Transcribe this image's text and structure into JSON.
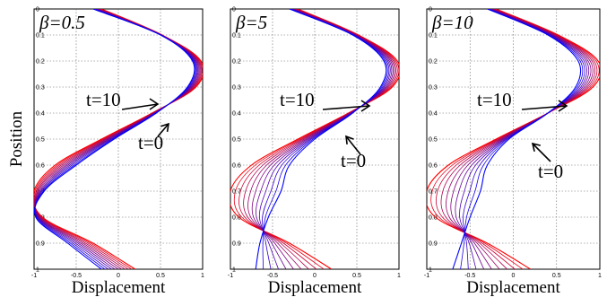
{
  "chart_data": [
    {
      "type": "line",
      "title": "β=0.5",
      "xlabel": "Displacement",
      "ylabel": "Position",
      "xlim": [
        -1,
        1
      ],
      "ylim": [
        0,
        1
      ],
      "y_inverted": true,
      "x_ticks": [
        "-1",
        "-0.5",
        "0",
        "0.5",
        "1"
      ],
      "y_ticks": [
        "0",
        "0.1",
        "0.2",
        "0.3",
        "0.4",
        "0.5",
        "0.6",
        "0.7",
        "0.8",
        "0.9",
        "1"
      ],
      "grid": true,
      "annotations": [
        "t=10",
        "t=0"
      ],
      "series_colors": [
        "#ff0000",
        "#0000ff"
      ],
      "t_values": [
        0,
        1,
        2,
        3,
        4,
        5,
        6,
        7,
        8,
        9,
        10
      ],
      "curve_y": [
        0,
        0.1,
        0.2,
        0.3,
        0.4,
        0.5,
        0.6,
        0.7,
        0.8,
        0.9,
        1
      ],
      "curve_t0_x": [
        -0.3,
        0.5,
        0.88,
        0.82,
        0.45,
        -0.05,
        -0.5,
        -0.88,
        -0.98,
        -0.6,
        -0.2
      ],
      "curve_t10_x": [
        -0.2,
        0.52,
        0.98,
        0.92,
        0.4,
        -0.2,
        -0.75,
        -1.0,
        -0.9,
        -0.3,
        0.2
      ]
    },
    {
      "type": "line",
      "title": "β=5",
      "xlabel": "Displacement",
      "ylabel": "",
      "xlim": [
        -1,
        1
      ],
      "ylim": [
        0,
        1
      ],
      "y_inverted": true,
      "x_ticks": [
        "-1",
        "-0.5",
        "0",
        "0.5",
        "1"
      ],
      "y_ticks": [
        "0",
        "0.1",
        "0.2",
        "0.3",
        "0.4",
        "0.5",
        "0.6",
        "0.7",
        "0.8",
        "0.9",
        "1"
      ],
      "grid": true,
      "annotations": [
        "t=10",
        "t=0"
      ],
      "series_colors": [
        "#ff0000",
        "#0000ff"
      ],
      "t_values": [
        0,
        1,
        2,
        3,
        4,
        5,
        6,
        7,
        8,
        9,
        10
      ],
      "curve_y": [
        0,
        0.1,
        0.2,
        0.3,
        0.4,
        0.5,
        0.6,
        0.7,
        0.8,
        0.9,
        1
      ],
      "curve_t0_x": [
        -0.3,
        0.45,
        0.82,
        0.78,
        0.45,
        0.0,
        -0.3,
        -0.4,
        -0.55,
        -0.65,
        -0.7
      ],
      "curve_t10_x": [
        -0.2,
        0.52,
        0.98,
        0.92,
        0.4,
        -0.2,
        -0.75,
        -1.0,
        -0.9,
        -0.3,
        0.2
      ]
    },
    {
      "type": "line",
      "title": "β=10",
      "xlabel": "Displacement",
      "ylabel": "",
      "xlim": [
        -1,
        1
      ],
      "ylim": [
        0,
        1
      ],
      "y_inverted": true,
      "x_ticks": [
        "-1",
        "-0.5",
        "0",
        "0.5",
        "1"
      ],
      "y_ticks": [
        "0",
        "0.1",
        "0.2",
        "0.3",
        "0.4",
        "0.5",
        "0.6",
        "0.7",
        "0.8",
        "0.9",
        "1"
      ],
      "grid": true,
      "annotations": [
        "t=10",
        "t=0"
      ],
      "series_colors": [
        "#ff0000",
        "#0000ff"
      ],
      "t_values": [
        0,
        1,
        2,
        3,
        4,
        5,
        6,
        7,
        8,
        9,
        10
      ],
      "curve_y": [
        0,
        0.1,
        0.2,
        0.3,
        0.4,
        0.5,
        0.6,
        0.7,
        0.8,
        0.9,
        1
      ],
      "curve_t0_x": [
        -0.3,
        0.4,
        0.75,
        0.72,
        0.4,
        -0.05,
        -0.3,
        -0.38,
        -0.5,
        -0.6,
        -0.7
      ],
      "curve_t10_x": [
        -0.2,
        0.52,
        0.98,
        0.92,
        0.4,
        -0.2,
        -0.75,
        -1.0,
        -0.9,
        -0.3,
        0.2
      ]
    }
  ]
}
